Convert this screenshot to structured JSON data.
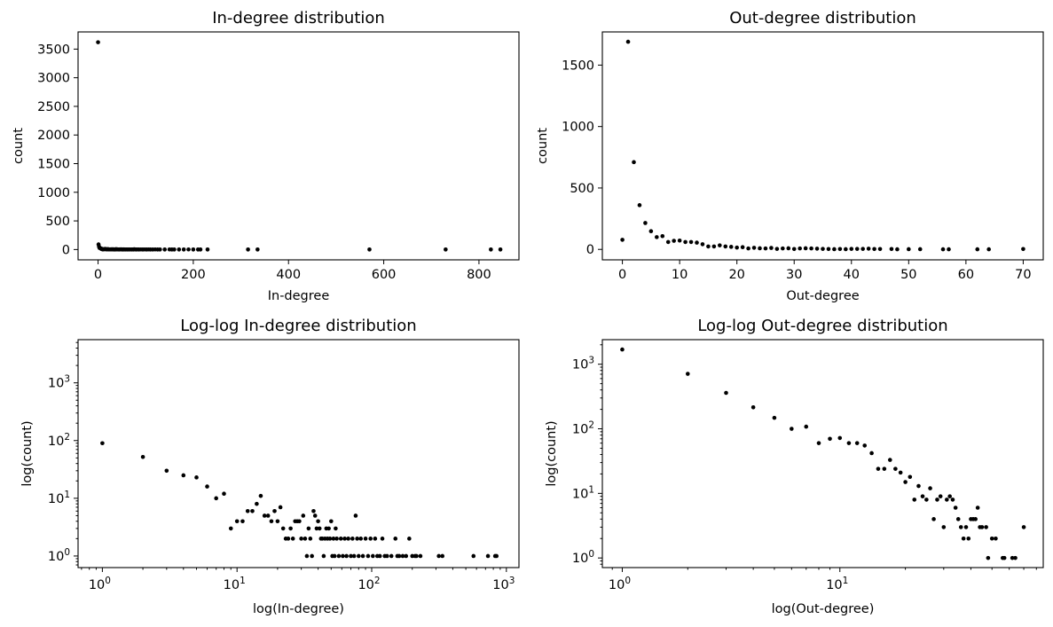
{
  "chart_data": [
    {
      "type": "scatter",
      "title": "In-degree distribution",
      "xlabel": "In-degree",
      "ylabel": "count",
      "xscale": "linear",
      "yscale": "linear",
      "xlim": [
        -42,
        884
      ],
      "ylim": [
        -180,
        3800
      ],
      "xticks": [
        0,
        200,
        400,
        600,
        800
      ],
      "yticks": [
        0,
        500,
        1000,
        1500,
        2000,
        2500,
        3000,
        3500
      ],
      "grid": false,
      "marker_color": "#000000",
      "x": [
        0,
        1,
        2,
        3,
        4,
        5,
        6,
        7,
        8,
        9,
        10,
        11,
        12,
        13,
        14,
        15,
        16,
        17,
        18,
        19,
        20,
        21,
        22,
        23,
        24,
        25,
        26,
        27,
        28,
        29,
        30,
        31,
        32,
        33,
        34,
        35,
        36,
        37,
        38,
        39,
        40,
        41,
        42,
        43,
        44,
        45,
        46,
        47,
        48,
        49,
        50,
        51,
        52,
        53,
        54,
        55,
        57,
        59,
        61,
        63,
        65,
        67,
        70,
        72,
        74,
        76,
        78,
        80,
        83,
        86,
        90,
        94,
        98,
        102,
        106,
        110,
        115,
        120,
        125,
        130,
        140,
        150,
        155,
        160,
        170,
        180,
        190,
        200,
        210,
        215,
        230,
        315,
        335,
        570,
        730,
        825,
        845
      ],
      "y": [
        3620,
        90,
        52,
        30,
        25,
        23,
        16,
        10,
        12,
        3,
        4,
        4,
        6,
        6,
        8,
        11,
        5,
        5,
        4,
        6,
        4,
        7,
        3,
        2,
        2,
        3,
        2,
        4,
        4,
        4,
        2,
        5,
        2,
        1,
        3,
        2,
        1,
        6,
        5,
        3,
        4,
        3,
        2,
        2,
        1,
        2,
        3,
        2,
        3,
        2,
        4,
        1,
        2,
        1,
        3,
        2,
        1,
        2,
        1,
        2,
        1,
        2,
        1,
        2,
        1,
        5,
        2,
        1,
        2,
        1,
        2,
        1,
        2,
        1,
        2,
        1,
        1,
        2,
        1,
        1,
        1,
        2,
        1,
        1,
        1,
        1,
        2,
        1,
        1,
        1,
        1,
        1,
        1,
        1,
        1,
        1,
        1
      ]
    },
    {
      "type": "scatter",
      "title": "Out-degree distribution",
      "xlabel": "Out-degree",
      "ylabel": "count",
      "xscale": "linear",
      "yscale": "linear",
      "xlim": [
        -3.5,
        73.5
      ],
      "ylim": [
        -85,
        1770
      ],
      "xticks": [
        0,
        10,
        20,
        30,
        40,
        50,
        60,
        70
      ],
      "yticks": [
        0,
        500,
        1000,
        1500
      ],
      "grid": false,
      "marker_color": "#000000",
      "x": [
        0,
        1,
        2,
        3,
        4,
        5,
        6,
        7,
        8,
        9,
        10,
        11,
        12,
        13,
        14,
        15,
        16,
        17,
        18,
        19,
        20,
        21,
        22,
        23,
        24,
        25,
        26,
        27,
        28,
        29,
        30,
        31,
        32,
        33,
        34,
        35,
        36,
        37,
        38,
        39,
        40,
        41,
        42,
        43,
        44,
        45,
        47,
        48,
        50,
        52,
        56,
        57,
        62,
        64,
        70
      ],
      "y": [
        78,
        1690,
        710,
        360,
        215,
        148,
        100,
        108,
        60,
        70,
        72,
        60,
        60,
        55,
        42,
        24,
        24,
        33,
        24,
        21,
        15,
        18,
        8,
        13,
        9,
        8,
        12,
        4,
        8,
        9,
        3,
        8,
        9,
        8,
        6,
        4,
        3,
        2,
        3,
        2,
        4,
        4,
        4,
        6,
        3,
        3,
        3,
        1,
        2,
        2,
        1,
        1,
        1,
        1,
        3
      ]
    },
    {
      "type": "scatter",
      "title": "Log-log In-degree distribution",
      "xlabel": "log(In-degree)",
      "ylabel": "log(count)",
      "xscale": "log",
      "yscale": "log",
      "xlim": [
        0.66,
        1240
      ],
      "ylim": [
        0.63,
        5600
      ],
      "xticks": [
        {
          "base": "10",
          "exp": "0",
          "value": 1
        },
        {
          "base": "10",
          "exp": "1",
          "value": 10
        },
        {
          "base": "10",
          "exp": "2",
          "value": 100
        },
        {
          "base": "10",
          "exp": "3",
          "value": 1000
        }
      ],
      "yticks": [
        {
          "base": "10",
          "exp": "0",
          "value": 1
        },
        {
          "base": "10",
          "exp": "1",
          "value": 10
        },
        {
          "base": "10",
          "exp": "2",
          "value": 100
        },
        {
          "base": "10",
          "exp": "3",
          "value": 1000
        }
      ],
      "grid": false,
      "marker_color": "#000000",
      "x": [
        1,
        2,
        3,
        4,
        5,
        6,
        7,
        8,
        9,
        10,
        11,
        12,
        13,
        14,
        15,
        16,
        17,
        18,
        19,
        20,
        21,
        22,
        23,
        24,
        25,
        26,
        27,
        28,
        29,
        30,
        31,
        32,
        33,
        34,
        35,
        36,
        37,
        38,
        39,
        40,
        41,
        42,
        43,
        44,
        45,
        46,
        47,
        48,
        49,
        50,
        51,
        52,
        53,
        54,
        55,
        57,
        59,
        61,
        63,
        65,
        67,
        70,
        72,
        74,
        76,
        78,
        80,
        83,
        86,
        90,
        94,
        98,
        102,
        106,
        110,
        115,
        120,
        125,
        130,
        140,
        150,
        155,
        160,
        170,
        180,
        190,
        200,
        210,
        215,
        230,
        315,
        335,
        570,
        730,
        825,
        845
      ],
      "y": [
        90,
        52,
        30,
        25,
        23,
        16,
        10,
        12,
        3,
        4,
        4,
        6,
        6,
        8,
        11,
        5,
        5,
        4,
        6,
        4,
        7,
        3,
        2,
        2,
        3,
        2,
        4,
        4,
        4,
        2,
        5,
        2,
        1,
        3,
        2,
        1,
        6,
        5,
        3,
        4,
        3,
        2,
        2,
        1,
        2,
        3,
        2,
        3,
        2,
        4,
        1,
        2,
        1,
        3,
        2,
        1,
        2,
        1,
        2,
        1,
        2,
        1,
        2,
        1,
        5,
        2,
        1,
        2,
        1,
        2,
        1,
        2,
        1,
        2,
        1,
        1,
        2,
        1,
        1,
        1,
        2,
        1,
        1,
        1,
        1,
        2,
        1,
        1,
        1,
        1,
        1,
        1,
        1,
        1,
        1,
        1
      ]
    },
    {
      "type": "scatter",
      "title": "Log-log Out-degree distribution",
      "xlabel": "log(Out-degree)",
      "ylabel": "log(count)",
      "xscale": "log",
      "yscale": "log",
      "xlim": [
        0.81,
        86
      ],
      "ylim": [
        0.71,
        2400
      ],
      "xticks": [
        {
          "base": "10",
          "exp": "0",
          "value": 1
        },
        {
          "base": "10",
          "exp": "1",
          "value": 10
        }
      ],
      "yticks": [
        {
          "base": "10",
          "exp": "0",
          "value": 1
        },
        {
          "base": "10",
          "exp": "1",
          "value": 10
        },
        {
          "base": "10",
          "exp": "2",
          "value": 100
        },
        {
          "base": "10",
          "exp": "3",
          "value": 1000
        }
      ],
      "grid": false,
      "marker_color": "#000000",
      "x": [
        1,
        2,
        3,
        4,
        5,
        6,
        7,
        8,
        9,
        10,
        11,
        12,
        13,
        14,
        15,
        16,
        17,
        18,
        19,
        20,
        21,
        22,
        23,
        24,
        25,
        26,
        27,
        28,
        29,
        30,
        31,
        32,
        33,
        34,
        35,
        36,
        37,
        38,
        39,
        40,
        41,
        42,
        43,
        44,
        45,
        47,
        48,
        50,
        52,
        56,
        57,
        62,
        64,
        70
      ],
      "y": [
        1690,
        710,
        360,
        215,
        148,
        100,
        108,
        60,
        70,
        72,
        60,
        60,
        55,
        42,
        24,
        24,
        33,
        24,
        21,
        15,
        18,
        8,
        13,
        9,
        8,
        12,
        4,
        8,
        9,
        3,
        8,
        9,
        8,
        6,
        4,
        3,
        2,
        3,
        2,
        4,
        4,
        4,
        6,
        3,
        3,
        3,
        1,
        2,
        2,
        1,
        1,
        1,
        1,
        3
      ]
    }
  ]
}
